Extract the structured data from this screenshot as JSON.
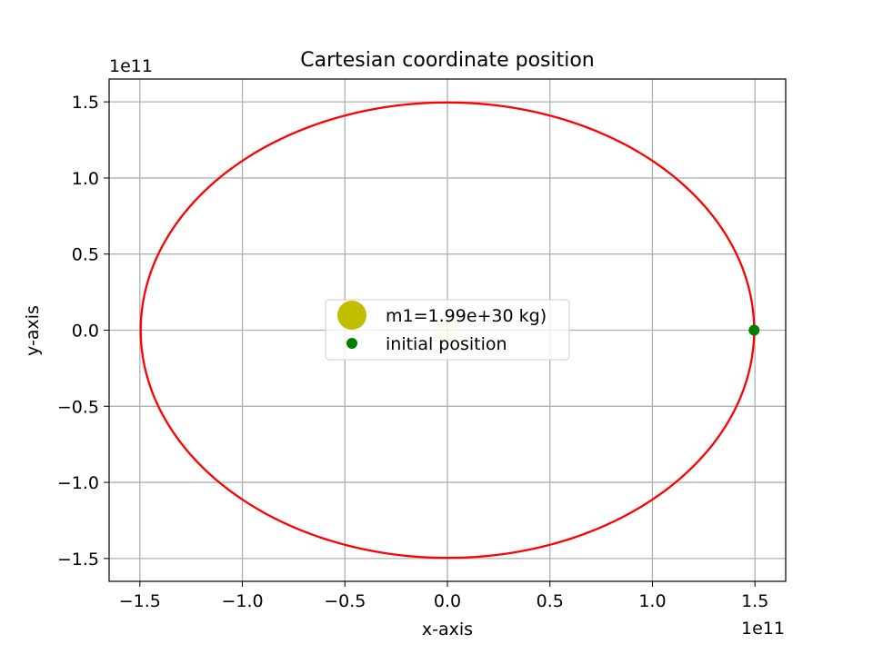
{
  "chart_data": {
    "type": "line",
    "title": "Cartesian coordinate position",
    "xlabel": "x-axis",
    "ylabel": "y-axis",
    "x_offset_label": "1e11",
    "y_offset_label": "1e11",
    "xlim": [
      -1.65,
      1.65
    ],
    "ylim": [
      -1.65,
      1.65
    ],
    "scale_exponent": 11,
    "xticks": [
      -1.5,
      -1.0,
      -0.5,
      0.0,
      0.5,
      1.0,
      1.5
    ],
    "yticks": [
      -1.5,
      -1.0,
      -0.5,
      0.0,
      0.5,
      1.0,
      1.5
    ],
    "xtick_labels": [
      "−1.5",
      "−1.0",
      "−0.5",
      "0.0",
      "0.5",
      "1.0",
      "1.5"
    ],
    "ytick_labels": [
      "−1.5",
      "−1.0",
      "−0.5",
      "0.0",
      "0.5",
      "1.0",
      "1.5"
    ],
    "grid": true,
    "legend_placement": "center",
    "series": [
      {
        "kind": "line",
        "shape": "circle",
        "center": [
          0,
          0
        ],
        "radius": 1.496,
        "color": "#ff0000"
      },
      {
        "name": "m1=1.99e+30 kg)",
        "kind": "point",
        "x": 0,
        "y": 0,
        "color": "#bfbf00",
        "alpha": 0.2
      },
      {
        "name": "initial position",
        "kind": "point",
        "x": 1.496,
        "y": 0,
        "color": "#008000"
      }
    ]
  }
}
